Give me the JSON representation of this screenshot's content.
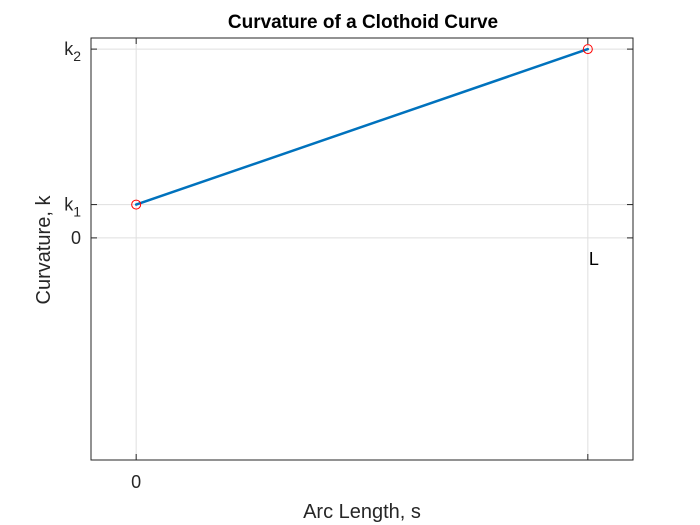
{
  "chart_data": {
    "type": "line",
    "title": "Curvature of a Clothoid Curve",
    "xlabel": "Arc Length, s",
    "ylabel": "Curvature, k",
    "xlim": [
      -0.1,
      1.1
    ],
    "ylim": [
      -1.0,
      0.9
    ],
    "grid": true,
    "series": [
      {
        "x": [
          0,
          1
        ],
        "y": [
          0.15,
          0.85
        ],
        "color": "#0072BD",
        "line_width": 2.5
      }
    ],
    "endpoint_markers": {
      "x": [
        0,
        1
      ],
      "y": [
        0.15,
        0.85
      ],
      "color": "#FF0000",
      "shape": "circle-open"
    },
    "x_ticks": [
      {
        "value": 0,
        "label": "0"
      },
      {
        "value": 1,
        "label": ""
      }
    ],
    "y_ticks": [
      {
        "value": 0,
        "label": "0"
      },
      {
        "value": 0.15,
        "label": "k",
        "subscript": "1"
      },
      {
        "value": 0.85,
        "label": "k",
        "subscript": "2"
      }
    ],
    "annotations": [
      {
        "text": "L",
        "x": 1.0,
        "y": -0.06
      }
    ],
    "colors": {
      "line": "#0072BD",
      "marker": "#FF0000",
      "grid": "#DFDFDF",
      "axes": "#262626"
    }
  }
}
